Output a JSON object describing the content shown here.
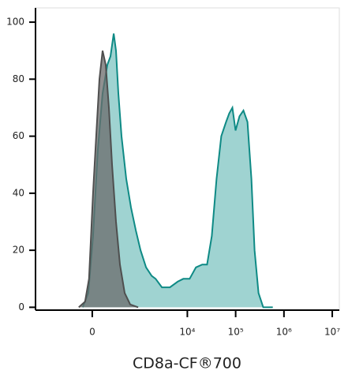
{
  "chart_data": {
    "type": "area",
    "x_label": "CD8a-CF®700",
    "xscale": "asinh",
    "xlim": [
      -1600,
      14000000
    ],
    "xticks": [
      {
        "value": 0,
        "label": "0"
      },
      {
        "value": 10000,
        "label": "10⁴"
      },
      {
        "value": 100000,
        "label": "10⁵"
      },
      {
        "value": 1000000,
        "label": "10⁶"
      },
      {
        "value": 10000000,
        "label": "10⁷"
      }
    ],
    "ylim": [
      -1,
      105
    ],
    "yticks": [
      0,
      20,
      40,
      60,
      80,
      100
    ],
    "series": [
      {
        "color": "#0e8a85",
        "fill": "#7fc4c2",
        "x": [
          -101,
          -41,
          8,
          57,
          110,
          168,
          211,
          260,
          299,
          342,
          407,
          522,
          664,
          843,
          1064,
          1391,
          1817,
          2195,
          2973,
          4343,
          6321,
          8256,
          11159,
          15072,
          20382,
          25585,
          32100,
          40248,
          50460,
          63296,
          73595,
          85570,
          99502,
          120185,
          145232,
          175354,
          211775,
          246390,
          297560,
          373025,
          587165
        ],
        "values": [
          0,
          5,
          25,
          55,
          75,
          85,
          88,
          96,
          90,
          75,
          60,
          45,
          35,
          27,
          20,
          14,
          11,
          10,
          7,
          7,
          9,
          10,
          10,
          14,
          15,
          15,
          25,
          45,
          60,
          65,
          68,
          70,
          62,
          67,
          69,
          65,
          45,
          20,
          5,
          0,
          0
        ]
      },
      {
        "color": "#4f4f4f",
        "fill": "#6b6b6b",
        "x": [
          -148,
          -75,
          -33,
          8,
          41,
          75,
          110,
          148,
          189,
          235,
          299,
          374,
          481,
          639,
          948
        ],
        "values": [
          0,
          2,
          10,
          40,
          60,
          80,
          90,
          85,
          70,
          50,
          30,
          15,
          5,
          1,
          0
        ]
      }
    ]
  }
}
